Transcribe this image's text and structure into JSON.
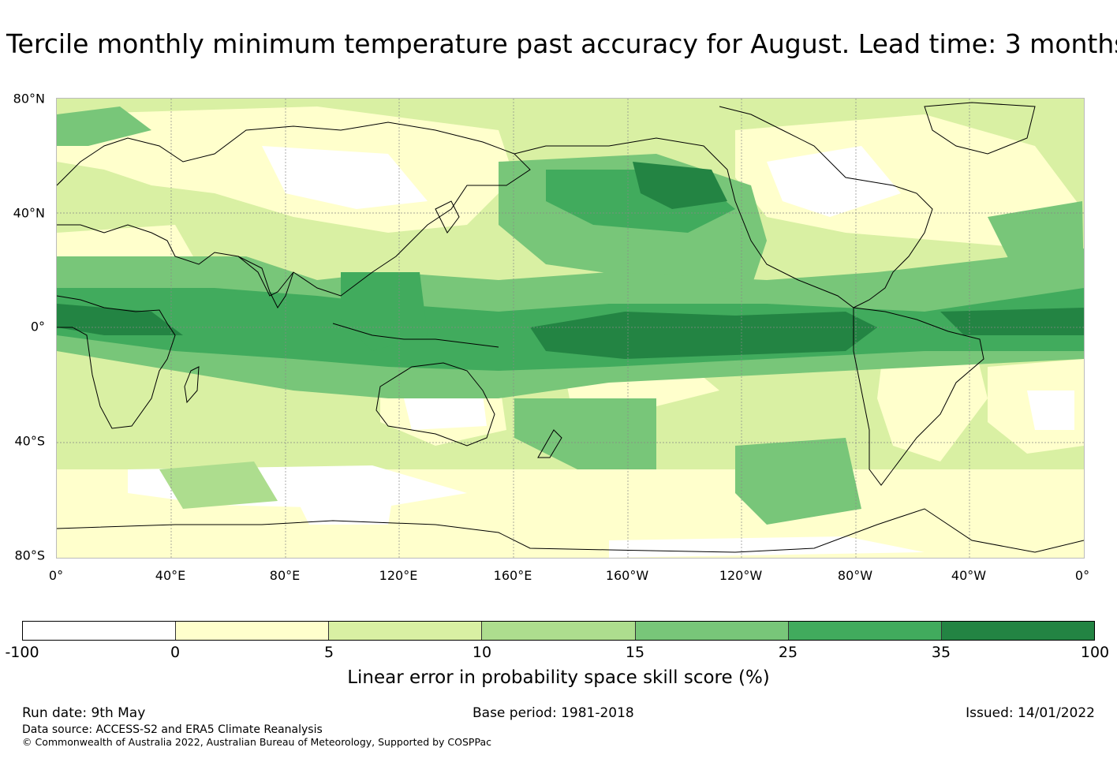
{
  "title": "Tercile monthly minimum temperature past accuracy for August. Lead time: 3 months",
  "map": {
    "lat_labels": [
      "80°N",
      "40°N",
      "0°",
      "40°S",
      "80°S"
    ],
    "lon_labels": [
      "0°",
      "40°E",
      "80°E",
      "120°E",
      "160°E",
      "160°W",
      "120°W",
      "80°W",
      "40°W",
      "0°"
    ]
  },
  "colorbar": {
    "ticks": [
      "-100",
      "0",
      "5",
      "10",
      "15",
      "25",
      "35",
      "100"
    ],
    "colors": [
      "#ffffff",
      "#ffffcc",
      "#d9f0a3",
      "#addd8e",
      "#78c679",
      "#41ab5d",
      "#238443"
    ],
    "label": "Linear error in probability space skill score (%)"
  },
  "footer": {
    "run_date": "Run date: 9th May",
    "base_period": "Base period: 1981-2018",
    "issued": "Issued: 14/01/2022",
    "data_source": "Data source: ACCESS-S2 and ERA5 Climate Reanalysis",
    "copyright": "© Commonwealth of Australia 2022, Australian Bureau of Meteorology, Supported by COSPPac"
  }
}
